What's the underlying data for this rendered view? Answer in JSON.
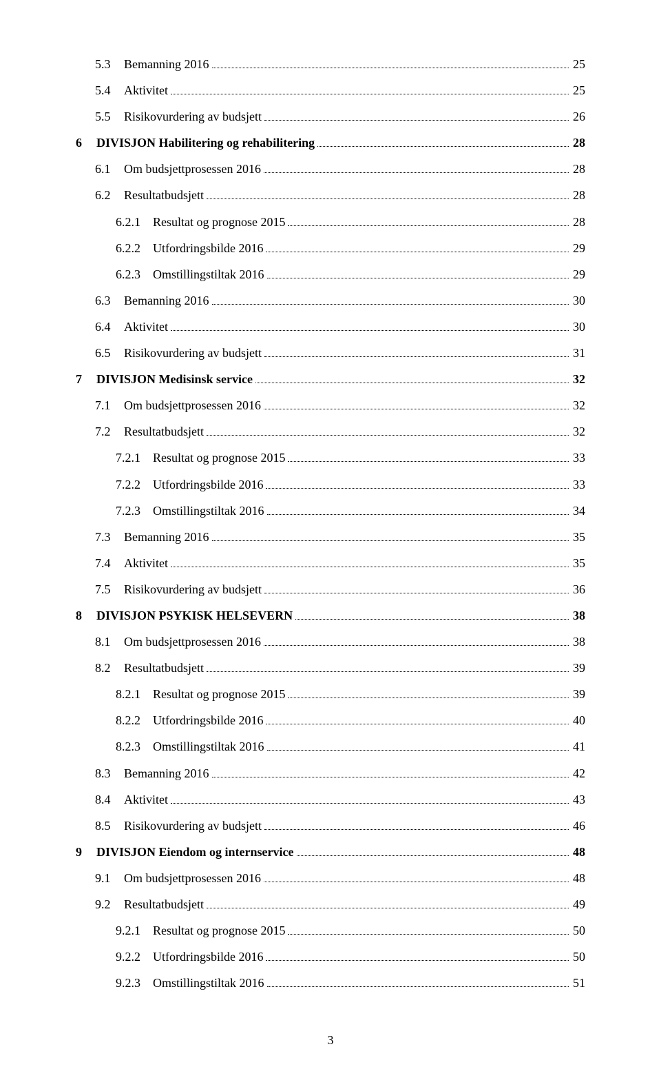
{
  "page_number": "3",
  "font_family": "Garamond, Times New Roman, serif",
  "text_color": "#000000",
  "background_color": "#ffffff",
  "base_font_size_pt": 13,
  "toc": [
    {
      "level": 1,
      "num": "5.3",
      "title": "Bemanning 2016",
      "page": "25",
      "bold": false
    },
    {
      "level": 1,
      "num": "5.4",
      "title": "Aktivitet",
      "page": "25",
      "bold": false
    },
    {
      "level": 1,
      "num": "5.5",
      "title": "Risikovurdering av budsjett",
      "page": "26",
      "bold": false
    },
    {
      "level": 0,
      "num": "6",
      "title": "DIVISJON Habilitering og rehabilitering",
      "page": "28",
      "bold": true
    },
    {
      "level": 1,
      "num": "6.1",
      "title": "Om budsjettprosessen 2016",
      "page": "28",
      "bold": false
    },
    {
      "level": 1,
      "num": "6.2",
      "title": "Resultatbudsjett",
      "page": "28",
      "bold": false
    },
    {
      "level": 2,
      "num": "6.2.1",
      "title": "Resultat og prognose 2015",
      "page": "28",
      "bold": false
    },
    {
      "level": 2,
      "num": "6.2.2",
      "title": "Utfordringsbilde 2016",
      "page": "29",
      "bold": false
    },
    {
      "level": 2,
      "num": "6.2.3",
      "title": "Omstillingstiltak 2016",
      "page": "29",
      "bold": false
    },
    {
      "level": 1,
      "num": "6.3",
      "title": "Bemanning 2016",
      "page": "30",
      "bold": false
    },
    {
      "level": 1,
      "num": "6.4",
      "title": "Aktivitet",
      "page": "30",
      "bold": false
    },
    {
      "level": 1,
      "num": "6.5",
      "title": "Risikovurdering av budsjett",
      "page": "31",
      "bold": false
    },
    {
      "level": 0,
      "num": "7",
      "title": "DIVISJON Medisinsk service",
      "page": "32",
      "bold": true
    },
    {
      "level": 1,
      "num": "7.1",
      "title": "Om budsjettprosessen 2016",
      "page": "32",
      "bold": false
    },
    {
      "level": 1,
      "num": "7.2",
      "title": "Resultatbudsjett",
      "page": "32",
      "bold": false
    },
    {
      "level": 2,
      "num": "7.2.1",
      "title": "Resultat og prognose 2015",
      "page": "33",
      "bold": false
    },
    {
      "level": 2,
      "num": "7.2.2",
      "title": "Utfordringsbilde 2016",
      "page": "33",
      "bold": false
    },
    {
      "level": 2,
      "num": "7.2.3",
      "title": "Omstillingstiltak 2016",
      "page": "34",
      "bold": false
    },
    {
      "level": 1,
      "num": "7.3",
      "title": "Bemanning 2016",
      "page": "35",
      "bold": false
    },
    {
      "level": 1,
      "num": "7.4",
      "title": "Aktivitet",
      "page": "35",
      "bold": false
    },
    {
      "level": 1,
      "num": "7.5",
      "title": "Risikovurdering av budsjett",
      "page": "36",
      "bold": false
    },
    {
      "level": 0,
      "num": "8",
      "title": "DIVISJON PSYKISK HELSEVERN",
      "page": "38",
      "bold": true
    },
    {
      "level": 1,
      "num": "8.1",
      "title": "Om budsjettprosessen 2016",
      "page": "38",
      "bold": false
    },
    {
      "level": 1,
      "num": "8.2",
      "title": "Resultatbudsjett",
      "page": "39",
      "bold": false
    },
    {
      "level": 2,
      "num": "8.2.1",
      "title": "Resultat og prognose 2015",
      "page": "39",
      "bold": false
    },
    {
      "level": 2,
      "num": "8.2.2",
      "title": "Utfordringsbilde 2016",
      "page": "40",
      "bold": false
    },
    {
      "level": 2,
      "num": "8.2.3",
      "title": "Omstillingstiltak 2016",
      "page": "41",
      "bold": false
    },
    {
      "level": 1,
      "num": "8.3",
      "title": "Bemanning 2016",
      "page": "42",
      "bold": false
    },
    {
      "level": 1,
      "num": "8.4",
      "title": "Aktivitet",
      "page": "43",
      "bold": false
    },
    {
      "level": 1,
      "num": "8.5",
      "title": "Risikovurdering av budsjett",
      "page": "46",
      "bold": false
    },
    {
      "level": 0,
      "num": "9",
      "title": "DIVISJON Eiendom og internservice",
      "page": "48",
      "bold": true
    },
    {
      "level": 1,
      "num": "9.1",
      "title": "Om budsjettprosessen 2016",
      "page": "48",
      "bold": false
    },
    {
      "level": 1,
      "num": "9.2",
      "title": "Resultatbudsjett",
      "page": "49",
      "bold": false
    },
    {
      "level": 2,
      "num": "9.2.1",
      "title": "Resultat og prognose 2015",
      "page": "50",
      "bold": false
    },
    {
      "level": 2,
      "num": "9.2.2",
      "title": "Utfordringsbilde 2016",
      "page": "50",
      "bold": false
    },
    {
      "level": 2,
      "num": "9.2.3",
      "title": "Omstillingstiltak 2016",
      "page": "51",
      "bold": false
    }
  ]
}
